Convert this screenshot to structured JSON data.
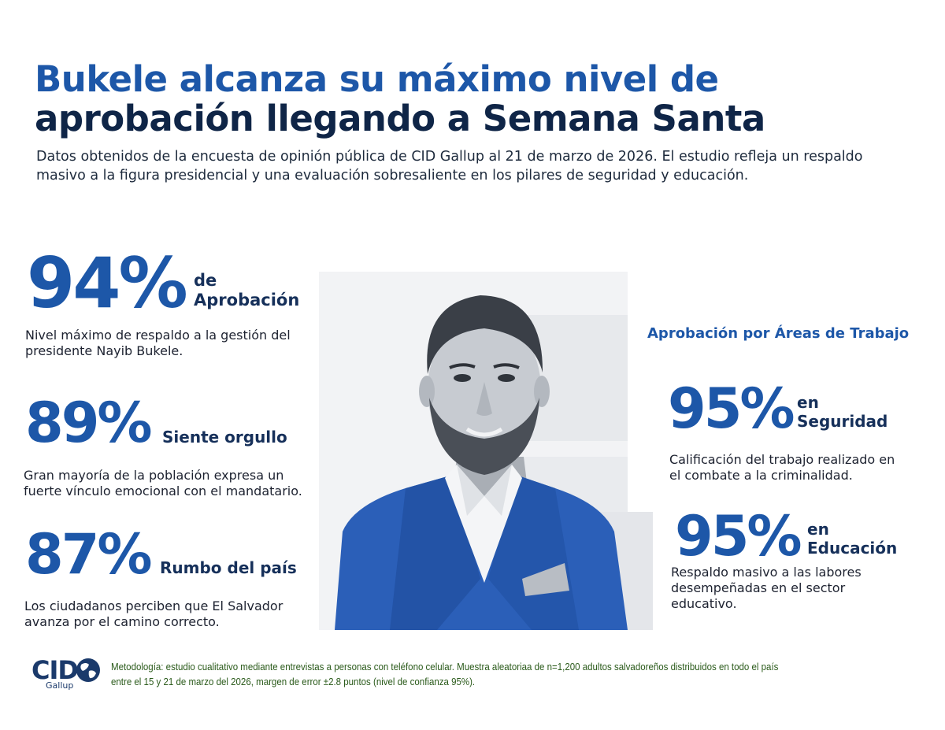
{
  "header": {
    "title_line1": "Bukele alcanza su máximo nivel de",
    "title_line2": "aprobación llegando a Semana Santa",
    "subtitle": "Datos obtenidos de la encuesta de opinión pública de CID Gallup al 21 de marzo de 2026. El estudio refleja un respaldo masivo a la figura presidencial y una evaluación sobresaliente en los pilares de seguridad y educación."
  },
  "left_stats": [
    {
      "value": "94%",
      "label_line1": "de",
      "label_line2": "Aprobación",
      "description": "Nivel máximo de respaldo a la gestión del presidente Nayib Bukele."
    },
    {
      "value": "89%",
      "label_line1": "Siente orgullo",
      "description": "Gran mayoría de la población expresa un fuerte vínculo emocional con el mandatario."
    },
    {
      "value": "87%",
      "label_line1": "Rumbo del país",
      "description": "Los ciudadanos perciben que El Salvador avanza por el camino correcto."
    }
  ],
  "areas": {
    "heading": "Aprobación por Áreas de Trabajo",
    "items": [
      {
        "value": "95%",
        "label_line1": "en",
        "label_line2": "Seguridad",
        "description": "Calificación del trabajo realizado en el combate a la criminalidad."
      },
      {
        "value": "95%",
        "label_line1": "en",
        "label_line2": "Educación",
        "description": "Respaldo masivo a las labores desempeñadas en el sector educativo."
      }
    ]
  },
  "footer": {
    "logo_text": "CID",
    "logo_subtext": "Gallup",
    "methodology": "Metodología: estudio cualitativo mediante entrevistas a personas con teléfono celular. Muestra  aleatoriaa de n=1,200 adultos salvadoreños distribuidos en todo el país entre el 15 y 21 de marzo del 2026, margen de error ±2.8 puntos (nivel de confianza 95%)."
  },
  "colors": {
    "accent_blue": "#1d57a8",
    "navy": "#0f2547",
    "jacket_blue": "#2b5fb8",
    "methodology_green": "#2a5a1a"
  },
  "icons": {
    "portrait": "president-portrait-illustration",
    "logo_globe": "globe-icon"
  }
}
